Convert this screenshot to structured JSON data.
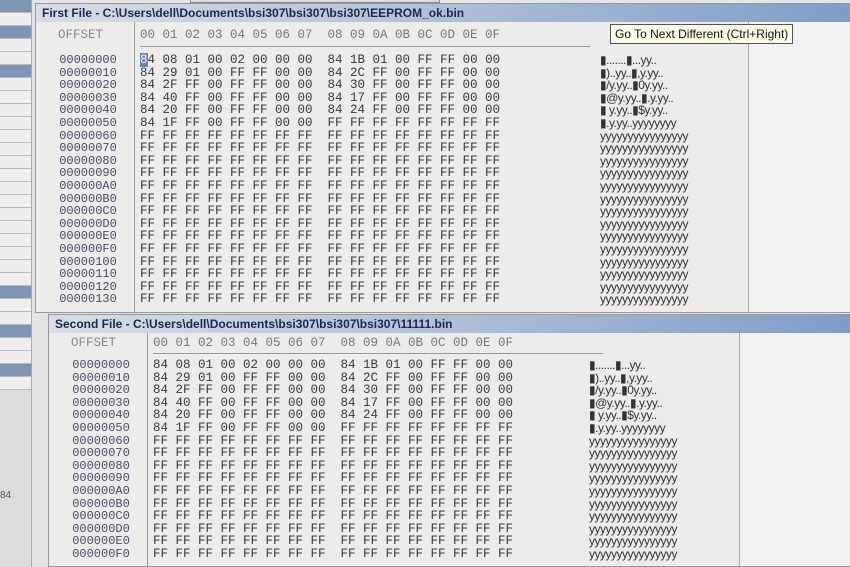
{
  "tooltip": "Go To Next Different (Ctrl+Right)",
  "sidebar": {
    "note": "84"
  },
  "first_file": {
    "title": "First File - C:\\Users\\dell\\Documents\\bsi307\\bsi307\\bsi307\\EEPROM_ok.bin",
    "offset_header": "OFFSET",
    "column_header": "00 01 02 03 04 05 06 07  08 09 0A 0B 0C 0D 0E 0F",
    "rows": [
      {
        "offset": "00000000",
        "hex": "84 08 01 00 02 00 00 00  84 1B 01 00 FF FF 00 00",
        "ascii": "▮.......▮...yy.."
      },
      {
        "offset": "00000010",
        "hex": "84 29 01 00 FF FF 00 00  84 2C FF 00 FF FF 00 00",
        "ascii": "▮)..yy..▮,y.yy.."
      },
      {
        "offset": "00000020",
        "hex": "84 2F FF 00 FF FF 00 00  84 30 FF 00 FF FF 00 00",
        "ascii": "▮/y.yy..▮0y.yy.."
      },
      {
        "offset": "00000030",
        "hex": "84 40 FF 00 FF FF 00 00  84 17 FF 00 FF FF 00 00",
        "ascii": "▮@y.yy..▮.y.yy.."
      },
      {
        "offset": "00000040",
        "hex": "84 20 FF 00 FF FF 00 00  84 24 FF 00 FF FF 00 00",
        "ascii": "▮ y.yy..▮$y.yy.."
      },
      {
        "offset": "00000050",
        "hex": "84 1F FF 00 FF FF 00 00  FF FF FF FF FF FF FF FF",
        "ascii": "▮.y.yy..yyyyyyyy"
      },
      {
        "offset": "00000060",
        "hex": "FF FF FF FF FF FF FF FF  FF FF FF FF FF FF FF FF",
        "ascii": "yyyyyyyyyyyyyyyy"
      },
      {
        "offset": "00000070",
        "hex": "FF FF FF FF FF FF FF FF  FF FF FF FF FF FF FF FF",
        "ascii": "yyyyyyyyyyyyyyyy"
      },
      {
        "offset": "00000080",
        "hex": "FF FF FF FF FF FF FF FF  FF FF FF FF FF FF FF FF",
        "ascii": "yyyyyyyyyyyyyyyy"
      },
      {
        "offset": "00000090",
        "hex": "FF FF FF FF FF FF FF FF  FF FF FF FF FF FF FF FF",
        "ascii": "yyyyyyyyyyyyyyyy"
      },
      {
        "offset": "000000A0",
        "hex": "FF FF FF FF FF FF FF FF  FF FF FF FF FF FF FF FF",
        "ascii": "yyyyyyyyyyyyyyyy"
      },
      {
        "offset": "000000B0",
        "hex": "FF FF FF FF FF FF FF FF  FF FF FF FF FF FF FF FF",
        "ascii": "yyyyyyyyyyyyyyyy"
      },
      {
        "offset": "000000C0",
        "hex": "FF FF FF FF FF FF FF FF  FF FF FF FF FF FF FF FF",
        "ascii": "yyyyyyyyyyyyyyyy"
      },
      {
        "offset": "000000D0",
        "hex": "FF FF FF FF FF FF FF FF  FF FF FF FF FF FF FF FF",
        "ascii": "yyyyyyyyyyyyyyyy"
      },
      {
        "offset": "000000E0",
        "hex": "FF FF FF FF FF FF FF FF  FF FF FF FF FF FF FF FF",
        "ascii": "yyyyyyyyyyyyyyyy"
      },
      {
        "offset": "000000F0",
        "hex": "FF FF FF FF FF FF FF FF  FF FF FF FF FF FF FF FF",
        "ascii": "yyyyyyyyyyyyyyyy"
      },
      {
        "offset": "00000100",
        "hex": "FF FF FF FF FF FF FF FF  FF FF FF FF FF FF FF FF",
        "ascii": "yyyyyyyyyyyyyyyy"
      },
      {
        "offset": "00000110",
        "hex": "FF FF FF FF FF FF FF FF  FF FF FF FF FF FF FF FF",
        "ascii": "yyyyyyyyyyyyyyyy"
      },
      {
        "offset": "00000120",
        "hex": "FF FF FF FF FF FF FF FF  FF FF FF FF FF FF FF FF",
        "ascii": "yyyyyyyyyyyyyyyy"
      },
      {
        "offset": "00000130",
        "hex": "FF FF FF FF FF FF FF FF  FF FF FF FF FF FF FF FF",
        "ascii": "yyyyyyyyyyyyyyyy"
      }
    ]
  },
  "second_file": {
    "title": "Second File - C:\\Users\\dell\\Documents\\bsi307\\bsi307\\bsi307\\11111.bin",
    "offset_header": "OFFSET",
    "column_header": "00 01 02 03 04 05 06 07  08 09 0A 0B 0C 0D 0E 0F",
    "rows": [
      {
        "offset": "00000000",
        "hex": "84 08 01 00 02 00 00 00  84 1B 01 00 FF FF 00 00",
        "ascii": "▮.......▮...yy.."
      },
      {
        "offset": "00000010",
        "hex": "84 29 01 00 FF FF 00 00  84 2C FF 00 FF FF 00 00",
        "ascii": "▮)..yy..▮,y.yy.."
      },
      {
        "offset": "00000020",
        "hex": "84 2F FF 00 FF FF 00 00  84 30 FF 00 FF FF 00 00",
        "ascii": "▮/y.yy..▮0y.yy.."
      },
      {
        "offset": "00000030",
        "hex": "84 40 FF 00 FF FF 00 00  84 17 FF 00 FF FF 00 00",
        "ascii": "▮@y.yy..▮.y.yy.."
      },
      {
        "offset": "00000040",
        "hex": "84 20 FF 00 FF FF 00 00  84 24 FF 00 FF FF 00 00",
        "ascii": "▮ y.yy..▮$y.yy.."
      },
      {
        "offset": "00000050",
        "hex": "84 1F FF 00 FF FF 00 00  FF FF FF FF FF FF FF FF",
        "ascii": "▮.y.yy..yyyyyyyy"
      },
      {
        "offset": "00000060",
        "hex": "FF FF FF FF FF FF FF FF  FF FF FF FF FF FF FF FF",
        "ascii": "yyyyyyyyyyyyyyyy"
      },
      {
        "offset": "00000070",
        "hex": "FF FF FF FF FF FF FF FF  FF FF FF FF FF FF FF FF",
        "ascii": "yyyyyyyyyyyyyyyy"
      },
      {
        "offset": "00000080",
        "hex": "FF FF FF FF FF FF FF FF  FF FF FF FF FF FF FF FF",
        "ascii": "yyyyyyyyyyyyyyyy"
      },
      {
        "offset": "00000090",
        "hex": "FF FF FF FF FF FF FF FF  FF FF FF FF FF FF FF FF",
        "ascii": "yyyyyyyyyyyyyyyy"
      },
      {
        "offset": "000000A0",
        "hex": "FF FF FF FF FF FF FF FF  FF FF FF FF FF FF FF FF",
        "ascii": "yyyyyyyyyyyyyyyy"
      },
      {
        "offset": "000000B0",
        "hex": "FF FF FF FF FF FF FF FF  FF FF FF FF FF FF FF FF",
        "ascii": "yyyyyyyyyyyyyyyy"
      },
      {
        "offset": "000000C0",
        "hex": "FF FF FF FF FF FF FF FF  FF FF FF FF FF FF FF FF",
        "ascii": "yyyyyyyyyyyyyyyy"
      },
      {
        "offset": "000000D0",
        "hex": "FF FF FF FF FF FF FF FF  FF FF FF FF FF FF FF FF",
        "ascii": "yyyyyyyyyyyyyyyy"
      },
      {
        "offset": "000000E0",
        "hex": "FF FF FF FF FF FF FF FF  FF FF FF FF FF FF FF FF",
        "ascii": "yyyyyyyyyyyyyyyy"
      },
      {
        "offset": "000000F0",
        "hex": "FF FF FF FF FF FF FF FF  FF FF FF FF FF FF FF FF",
        "ascii": "yyyyyyyyyyyyyyyy"
      }
    ]
  }
}
